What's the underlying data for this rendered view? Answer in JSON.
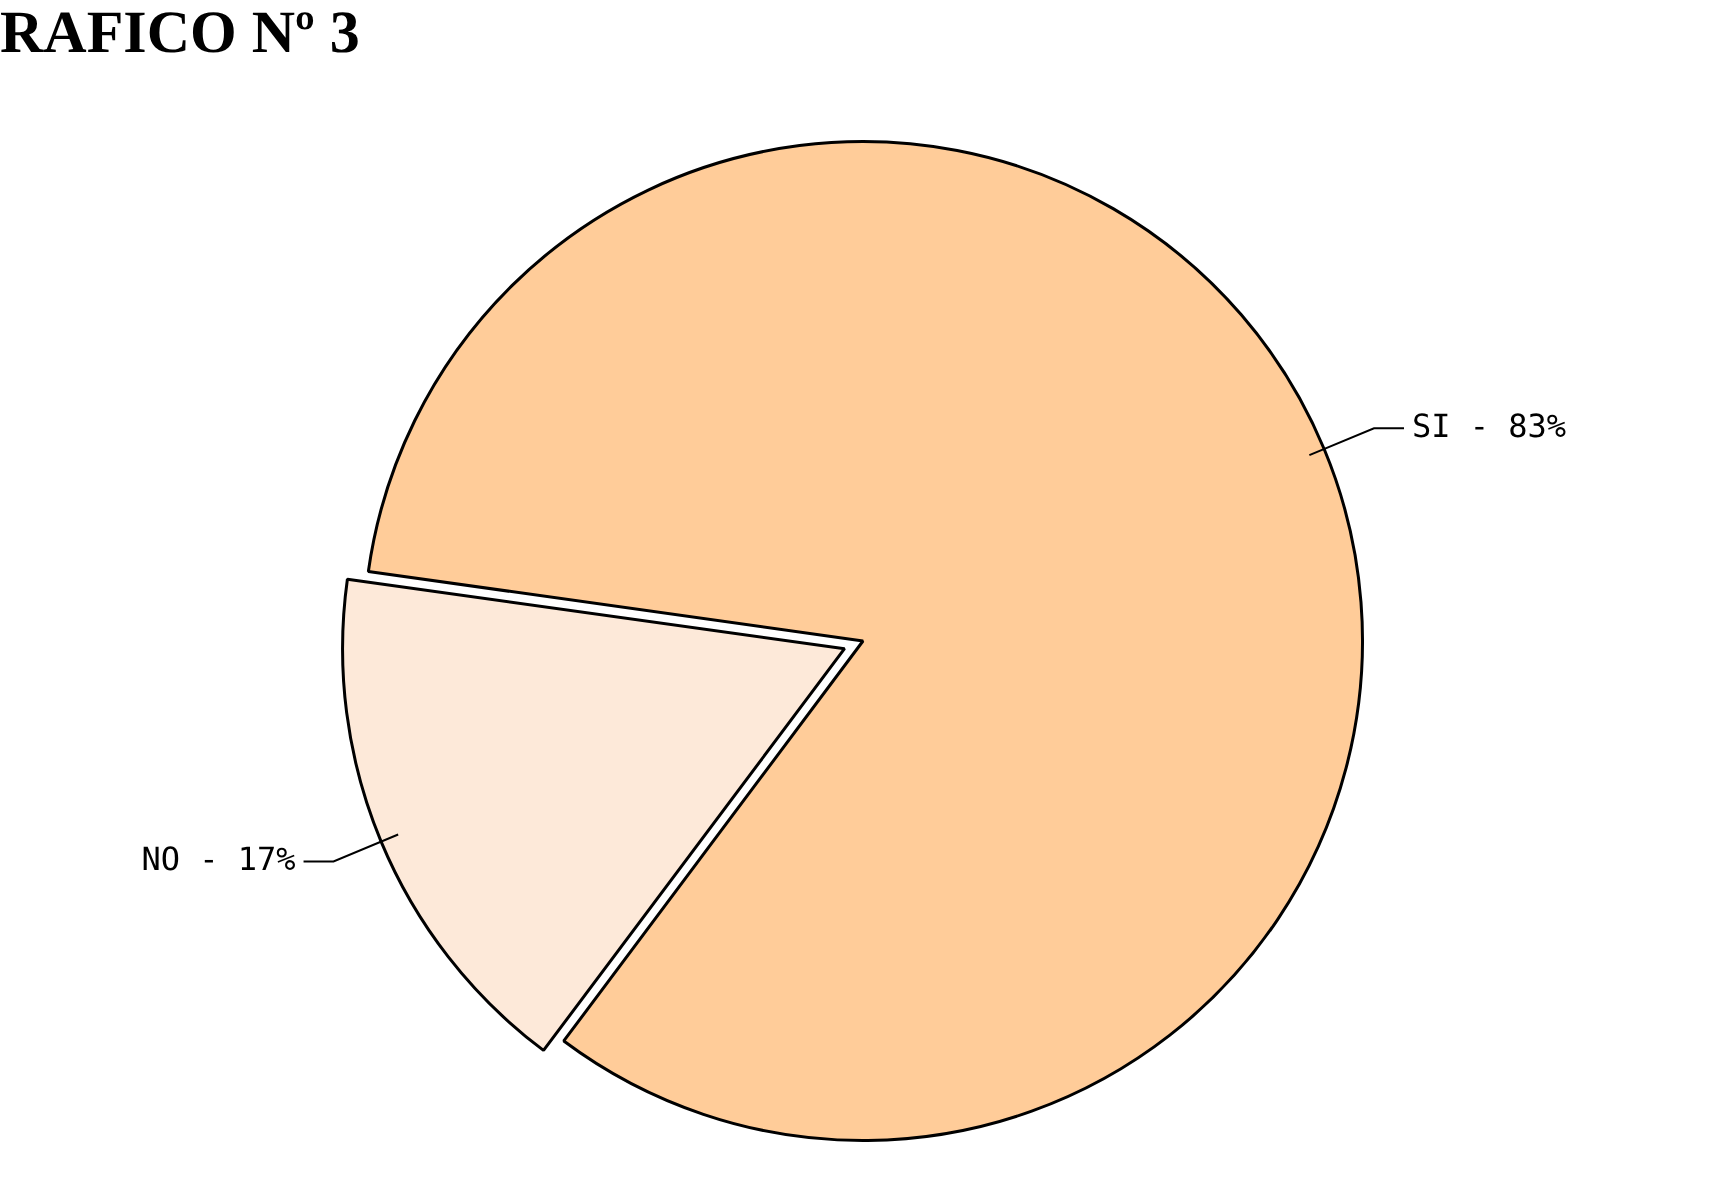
{
  "chart_data": {
    "type": "pie",
    "title": "RAFICO Nº 3",
    "categories": [
      "SI - 83%",
      "NO - 17%"
    ],
    "values": [
      83,
      17
    ],
    "colors": [
      "#ffcc99",
      "#fde9d9"
    ],
    "legend": false
  }
}
